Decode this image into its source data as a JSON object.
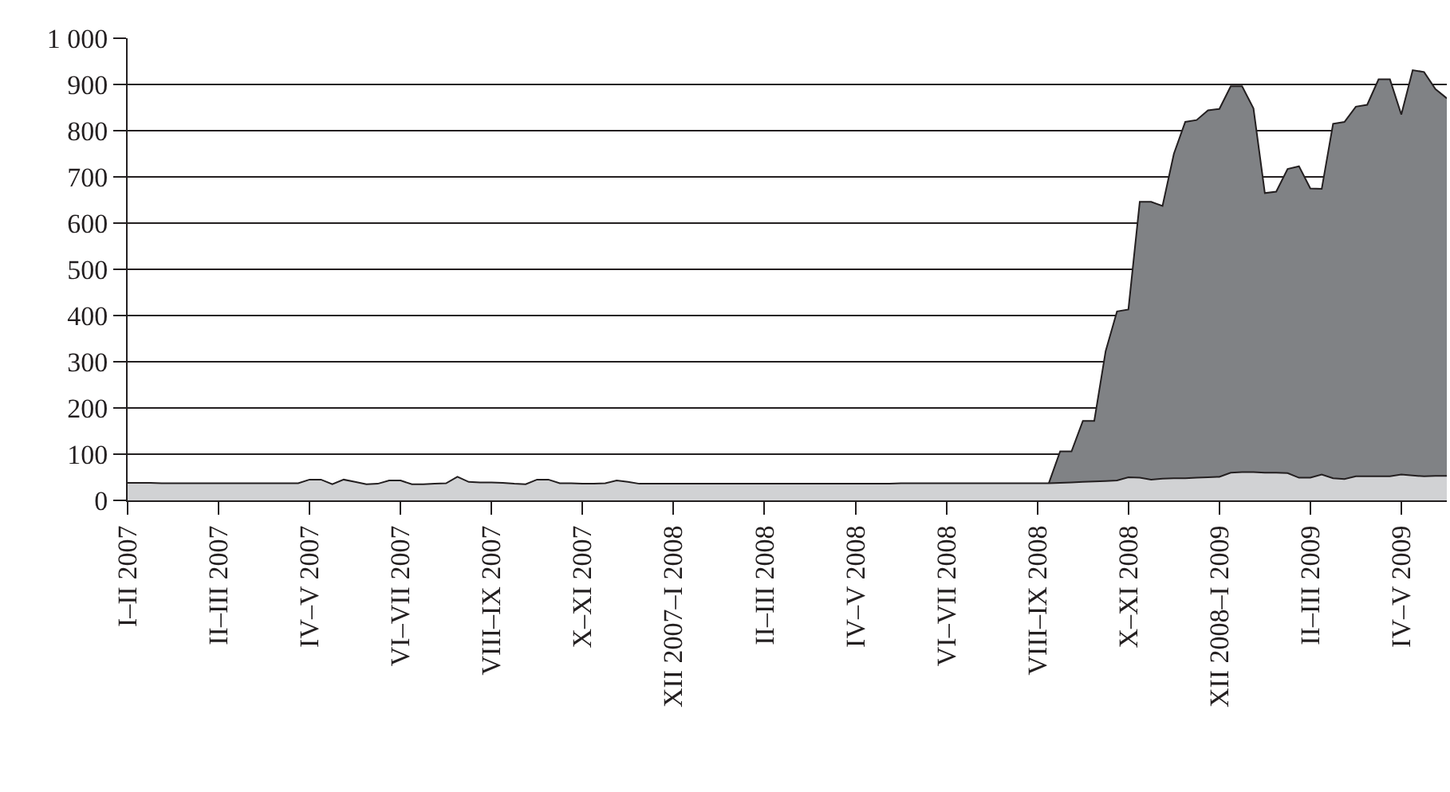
{
  "chart_data": {
    "type": "area",
    "categories": [
      "I–II 2007",
      null,
      null,
      null,
      null,
      null,
      null,
      null,
      "II–III 2007",
      null,
      null,
      null,
      null,
      null,
      null,
      null,
      "IV–V 2007",
      null,
      null,
      null,
      null,
      null,
      null,
      null,
      "VI–VII 2007",
      null,
      null,
      null,
      null,
      null,
      null,
      null,
      "VIII–IX 2007",
      null,
      null,
      null,
      null,
      null,
      null,
      null,
      "X–XI 2007",
      null,
      null,
      null,
      null,
      null,
      null,
      null,
      "XII 2007–I 2008",
      null,
      null,
      null,
      null,
      null,
      null,
      null,
      "II–III 2008",
      null,
      null,
      null,
      null,
      null,
      null,
      null,
      "IV–V 2008",
      null,
      null,
      null,
      null,
      null,
      null,
      null,
      "VI–VII 2008",
      null,
      null,
      null,
      null,
      null,
      null,
      null,
      "VIII–IX 2008",
      null,
      null,
      null,
      null,
      null,
      null,
      null,
      "X–XI 2008",
      null,
      null,
      null,
      null,
      null,
      null,
      null,
      "XII 2008–I 2009",
      null,
      null,
      null,
      null,
      null,
      null,
      null,
      "II–III 2009",
      null,
      null,
      null,
      null,
      null,
      null,
      null,
      "IV–V 2009",
      null,
      null,
      null,
      null
    ],
    "series": [
      {
        "color": "#808285",
        "values": [
          null,
          null,
          null,
          null,
          null,
          null,
          null,
          null,
          null,
          null,
          null,
          null,
          null,
          null,
          null,
          null,
          null,
          null,
          null,
          null,
          null,
          null,
          null,
          null,
          null,
          null,
          null,
          null,
          null,
          null,
          null,
          null,
          null,
          null,
          null,
          null,
          null,
          null,
          null,
          null,
          null,
          null,
          null,
          null,
          null,
          null,
          null,
          null,
          null,
          null,
          null,
          null,
          null,
          null,
          null,
          null,
          null,
          null,
          null,
          null,
          null,
          null,
          null,
          null,
          null,
          null,
          null,
          null,
          null,
          null,
          null,
          null,
          null,
          null,
          null,
          null,
          null,
          null,
          null,
          null,
          null,
          37,
          106,
          106,
          172,
          172,
          323,
          409,
          413,
          646,
          646,
          637,
          750,
          819,
          823,
          844,
          847,
          896,
          896,
          848,
          665,
          668,
          717,
          723,
          675,
          674,
          815,
          819,
          852,
          856,
          911,
          911,
          835,
          931,
          927,
          890,
          870
        ]
      },
      {
        "color": "#d1d2d4",
        "values": [
          38,
          38,
          38,
          37,
          37,
          37,
          37,
          37,
          37,
          37,
          37,
          37,
          37,
          37,
          37,
          37,
          45,
          45,
          35,
          45,
          40,
          35,
          36,
          43,
          43,
          35,
          35,
          36,
          37,
          51,
          40,
          39,
          39,
          38,
          36,
          35,
          45,
          45,
          37,
          37,
          36,
          36,
          37,
          43,
          40,
          36,
          36,
          36,
          36,
          36,
          36,
          36,
          36,
          36,
          36,
          36,
          36,
          36,
          36,
          36,
          36,
          36,
          36,
          36,
          36,
          36,
          36,
          36,
          37,
          37,
          37,
          37,
          37,
          37,
          37,
          37,
          37,
          37,
          37,
          37,
          37,
          37,
          38,
          39,
          40,
          41,
          42,
          43,
          50,
          49,
          45,
          47,
          48,
          48,
          49,
          50,
          51,
          60,
          61,
          61,
          60,
          60,
          59,
          49,
          49,
          56,
          48,
          46,
          52,
          52,
          52,
          52,
          56,
          54,
          52,
          53,
          53
        ]
      }
    ],
    "ylim": [
      0,
      1000
    ],
    "yticks": [
      0,
      100,
      200,
      300,
      400,
      500,
      600,
      700,
      800,
      900,
      {
        "value": 1000,
        "label": "1 000"
      }
    ],
    "grid": "y"
  }
}
